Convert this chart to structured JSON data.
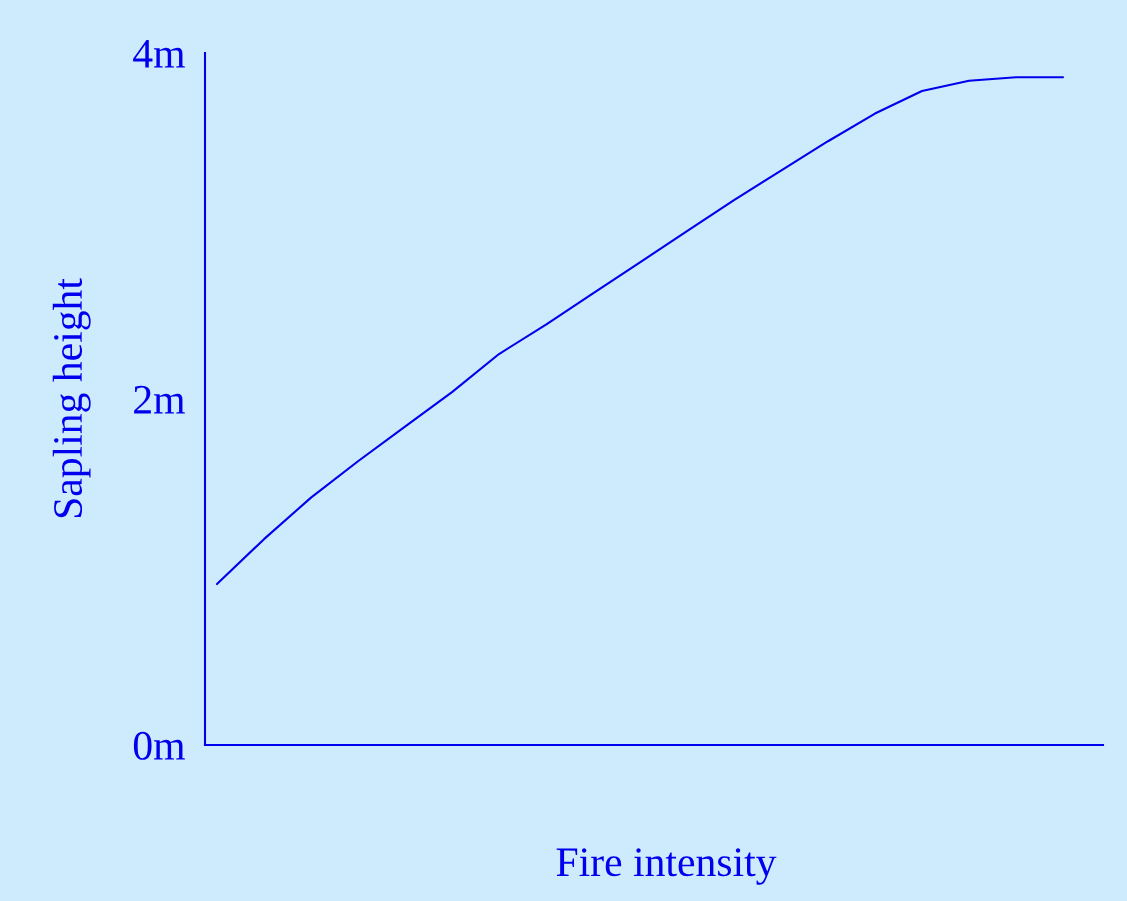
{
  "chart_data": {
    "type": "line",
    "xlabel": "Fire intensity",
    "ylabel": "Sapling height",
    "categories": [
      null,
      null,
      null,
      null,
      null,
      null,
      null,
      null,
      null,
      null,
      null,
      null,
      null,
      null,
      null,
      null,
      null,
      null,
      null
    ],
    "series": [
      {
        "color": "#0000ee",
        "values": [
          0.93,
          1.19,
          1.43,
          1.64,
          1.84,
          2.04,
          2.26,
          2.43,
          2.61,
          2.79,
          2.97,
          3.15,
          3.32,
          3.49,
          3.65,
          3.78,
          3.84,
          3.86,
          3.86
        ]
      }
    ],
    "ylim": [
      0,
      4
    ],
    "yticks": [
      {
        "value": 0,
        "label": "0m"
      },
      {
        "value": 2,
        "label": "2m"
      },
      {
        "value": 4,
        "label": "4m"
      }
    ]
  }
}
